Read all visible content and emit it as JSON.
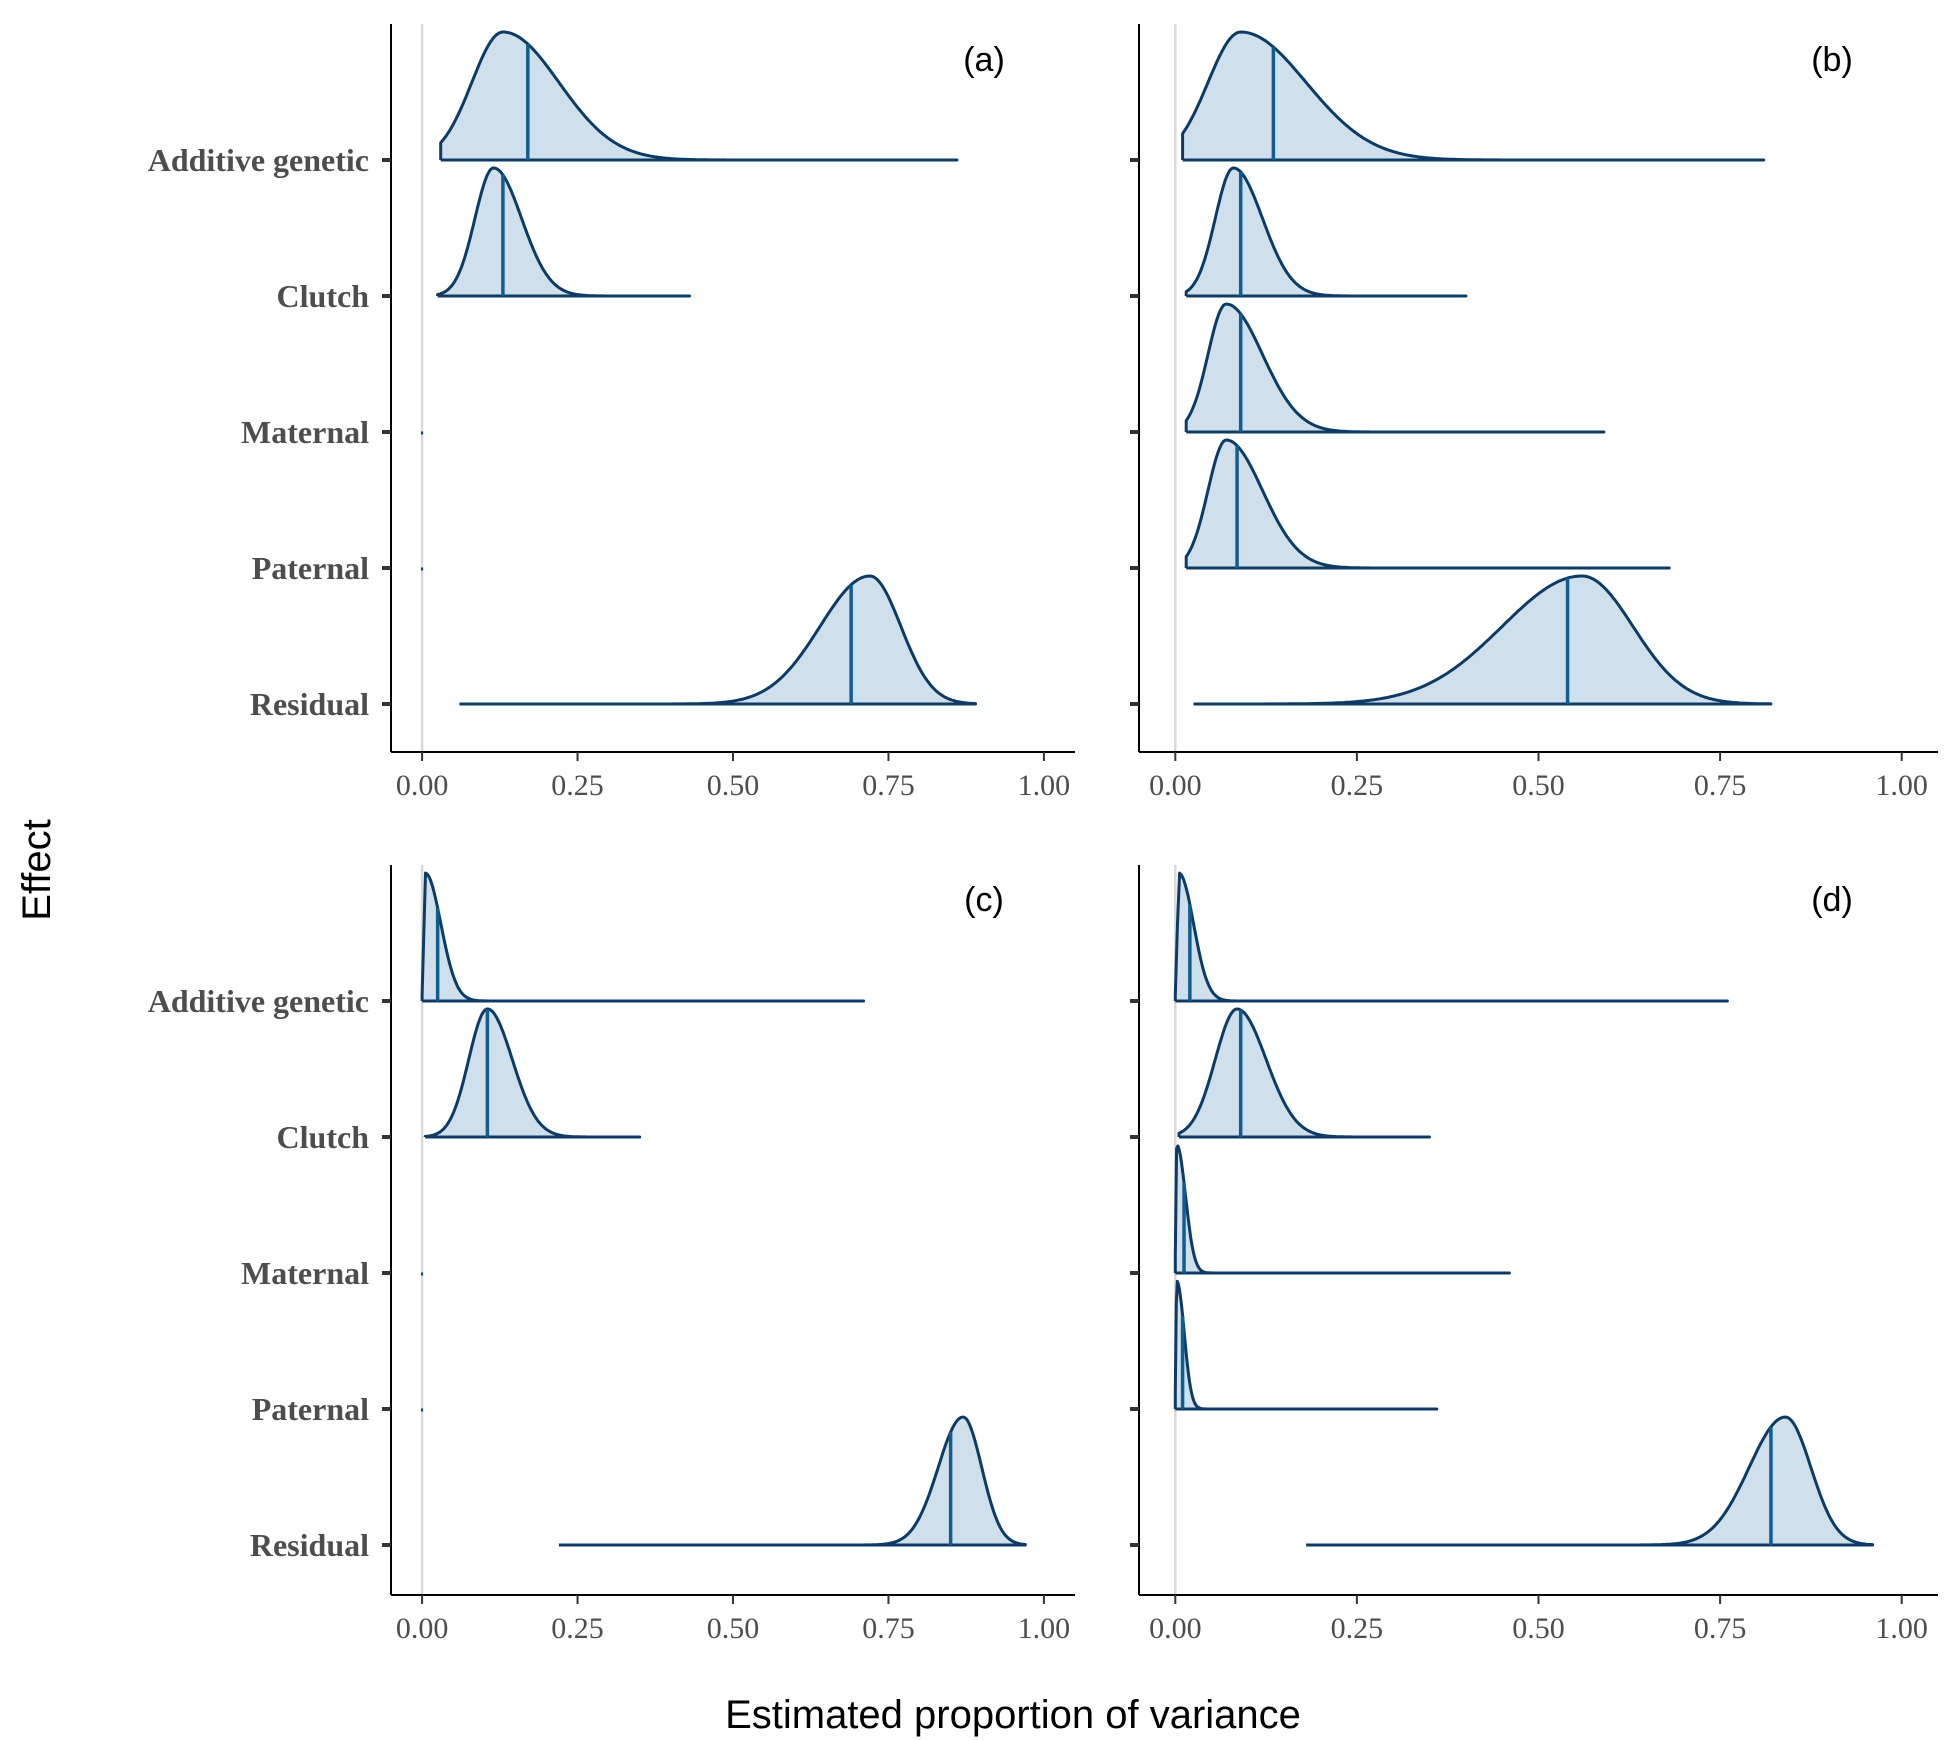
{
  "chart_data": {
    "type": "ridgeline",
    "xlabel": "Estimated proportion of variance",
    "ylabel": "Effect",
    "xlim": [
      -0.05,
      1.05
    ],
    "x_ticks": [
      "0.00",
      "0.25",
      "0.50",
      "0.75",
      "1.00"
    ],
    "x_tick_values": [
      0,
      0.25,
      0.5,
      0.75,
      1
    ],
    "categories": [
      "Additive genetic",
      "Clutch",
      "Maternal",
      "Paternal",
      "Residual"
    ],
    "reference_line_x": 0,
    "colors": {
      "fill": "#cfe0ec",
      "outline": "#0d3b66",
      "median": "#125d8f",
      "reference": "#d9d9d9"
    },
    "panels": [
      {
        "label": "(a)",
        "ridges": [
          {
            "category": "Additive genetic",
            "min": 0.03,
            "max": 0.86,
            "mode": 0.13,
            "median": 0.17,
            "sd_left": 0.05,
            "sd_right": 0.09
          },
          {
            "category": "Clutch",
            "min": 0.025,
            "max": 0.43,
            "mode": 0.115,
            "median": 0.13,
            "sd_left": 0.03,
            "sd_right": 0.045
          },
          {
            "category": "Maternal",
            "min": 0.0,
            "max": 0.0,
            "mode": 0.0,
            "median": 0.0,
            "sd_left": 0.001,
            "sd_right": 0.001
          },
          {
            "category": "Paternal",
            "min": 0.0,
            "max": 0.0,
            "mode": 0.0,
            "median": 0.0,
            "sd_left": 0.001,
            "sd_right": 0.001
          },
          {
            "category": "Residual",
            "min": 0.06,
            "max": 0.89,
            "mode": 0.72,
            "median": 0.69,
            "sd_left": 0.08,
            "sd_right": 0.05
          }
        ]
      },
      {
        "label": "(b)",
        "ridges": [
          {
            "category": "Additive genetic",
            "min": 0.01,
            "max": 0.81,
            "mode": 0.09,
            "median": 0.135,
            "sd_left": 0.045,
            "sd_right": 0.09
          },
          {
            "category": "Clutch",
            "min": 0.015,
            "max": 0.4,
            "mode": 0.08,
            "median": 0.09,
            "sd_left": 0.025,
            "sd_right": 0.04
          },
          {
            "category": "Maternal",
            "min": 0.015,
            "max": 0.59,
            "mode": 0.07,
            "median": 0.09,
            "sd_left": 0.025,
            "sd_right": 0.05
          },
          {
            "category": "Paternal",
            "min": 0.015,
            "max": 0.68,
            "mode": 0.07,
            "median": 0.085,
            "sd_left": 0.025,
            "sd_right": 0.05
          },
          {
            "category": "Residual",
            "min": 0.025,
            "max": 0.82,
            "mode": 0.56,
            "median": 0.54,
            "sd_left": 0.11,
            "sd_right": 0.07
          }
        ]
      },
      {
        "label": "(c)",
        "ridges": [
          {
            "category": "Additive genetic",
            "min": 0.0,
            "max": 0.71,
            "mode": 0.005,
            "median": 0.025,
            "sd_left": 0.002,
            "sd_right": 0.025
          },
          {
            "category": "Clutch",
            "min": 0.005,
            "max": 0.35,
            "mode": 0.105,
            "median": 0.105,
            "sd_left": 0.03,
            "sd_right": 0.04
          },
          {
            "category": "Maternal",
            "min": 0.0,
            "max": 0.0,
            "mode": 0.0,
            "median": 0.0,
            "sd_left": 0.001,
            "sd_right": 0.001
          },
          {
            "category": "Paternal",
            "min": 0.0,
            "max": 0.0,
            "mode": 0.0,
            "median": 0.0,
            "sd_left": 0.001,
            "sd_right": 0.001
          },
          {
            "category": "Residual",
            "min": 0.22,
            "max": 0.97,
            "mode": 0.87,
            "median": 0.85,
            "sd_left": 0.04,
            "sd_right": 0.03
          }
        ]
      },
      {
        "label": "(d)",
        "ridges": [
          {
            "category": "Additive genetic",
            "min": 0.0,
            "max": 0.76,
            "mode": 0.005,
            "median": 0.02,
            "sd_left": 0.002,
            "sd_right": 0.02
          },
          {
            "category": "Clutch",
            "min": 0.005,
            "max": 0.35,
            "mode": 0.085,
            "median": 0.09,
            "sd_left": 0.03,
            "sd_right": 0.04
          },
          {
            "category": "Maternal",
            "min": 0.0,
            "max": 0.46,
            "mode": 0.002,
            "median": 0.012,
            "sd_left": 0.001,
            "sd_right": 0.012
          },
          {
            "category": "Paternal",
            "min": 0.0,
            "max": 0.36,
            "mode": 0.002,
            "median": 0.01,
            "sd_left": 0.001,
            "sd_right": 0.01
          },
          {
            "category": "Residual",
            "min": 0.18,
            "max": 0.96,
            "mode": 0.84,
            "median": 0.82,
            "sd_left": 0.05,
            "sd_right": 0.035
          }
        ]
      }
    ]
  }
}
